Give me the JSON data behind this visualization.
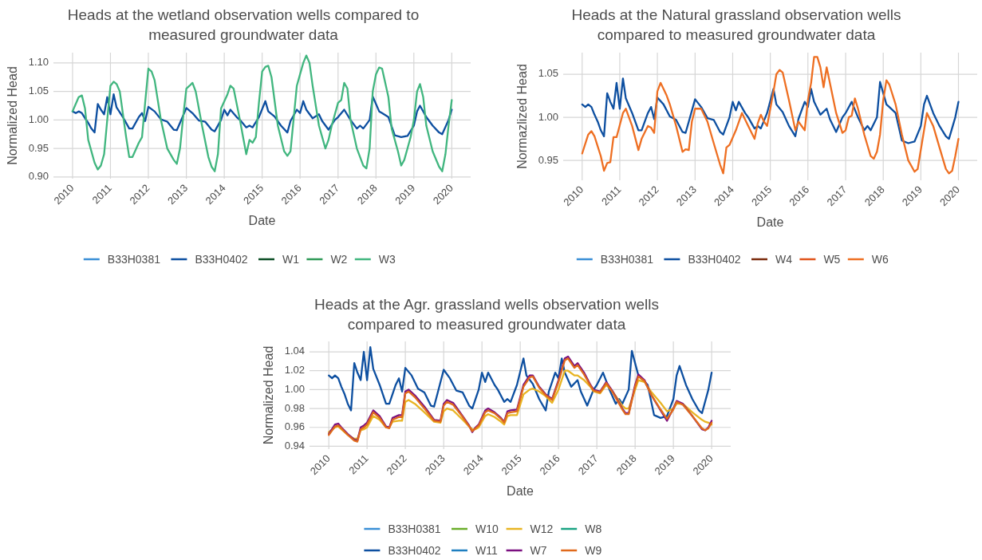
{
  "chart_data": [
    {
      "type": "line",
      "title": "Heads at the wetland observation wells compared to measured groundwater data",
      "xlabel": "Date",
      "ylabel": "Normalized Head",
      "xlim": [
        "2009-07-01",
        "2020-07-01"
      ],
      "xticks": [
        "2010",
        "2011",
        "2012",
        "2013",
        "2014",
        "2015",
        "2016",
        "2017",
        "2018",
        "2019",
        "2020"
      ],
      "ylim": [
        0.897,
        1.118
      ],
      "yticks": [
        {
          "value": 0.9,
          "label": "0.90"
        },
        {
          "value": 0.95,
          "label": "0.95"
        },
        {
          "value": 1.0,
          "label": "1.00"
        },
        {
          "value": 1.05,
          "label": "1.05"
        },
        {
          "value": 1.1,
          "label": "1.10"
        }
      ],
      "grid": true,
      "legend": "bottom",
      "line_style": "solid",
      "marker": "none",
      "series": [
        {
          "name": "B33H0381",
          "color": "#3a8fd6"
        },
        {
          "name": "B33H0402",
          "color": "#0d4fa0",
          "x": [
            "2010-01",
            "2010-02",
            "2010-03",
            "2010-04",
            "2010-05",
            "2010-06",
            "2010-07",
            "2010-08",
            "2010-09",
            "2010-10",
            "2010-11",
            "2010-12",
            "2011-01",
            "2011-02",
            "2011-03",
            "2011-05",
            "2011-07",
            "2011-08",
            "2011-10",
            "2011-11",
            "2011-12",
            "2012-01",
            "2012-03",
            "2012-05",
            "2012-07",
            "2012-09",
            "2012-10",
            "2012-11",
            "2013-01",
            "2013-03",
            "2013-05",
            "2013-07",
            "2013-09",
            "2013-10",
            "2013-12",
            "2014-01",
            "2014-02",
            "2014-03",
            "2014-05",
            "2014-06",
            "2014-08",
            "2014-09",
            "2014-10",
            "2014-12",
            "2015-02",
            "2015-03",
            "2015-05",
            "2015-07",
            "2015-09",
            "2015-10",
            "2015-12",
            "2016-01",
            "2016-02",
            "2016-03",
            "2016-05",
            "2016-07",
            "2016-08",
            "2016-10",
            "2016-12",
            "2017-01",
            "2017-03",
            "2017-05",
            "2017-07",
            "2017-08",
            "2017-09",
            "2017-11",
            "2017-12",
            "2018-02",
            "2018-03",
            "2018-05",
            "2018-07",
            "2018-09",
            "2018-11",
            "2019-01",
            "2019-02",
            "2019-03",
            "2019-05",
            "2019-07",
            "2019-09",
            "2019-10",
            "2019-12",
            "2020-01"
          ],
          "values": [
            1.015,
            1.012,
            1.015,
            1.012,
            1.003,
            0.995,
            0.985,
            0.978,
            1.028,
            1.018,
            1.01,
            1.04,
            1.01,
            1.045,
            1.022,
            1.005,
            0.985,
            0.985,
            1.005,
            1.012,
            0.998,
            1.023,
            1.015,
            1.001,
            0.997,
            0.983,
            0.982,
            0.995,
            1.021,
            1.012,
            0.999,
            0.997,
            0.983,
            0.98,
            1.0,
            1.018,
            1.008,
            1.018,
            1.005,
            1.0,
            0.987,
            0.99,
            0.987,
            1.005,
            1.033,
            1.015,
            1.006,
            0.99,
            0.978,
            0.998,
            1.018,
            1.012,
            1.033,
            1.018,
            1.003,
            1.01,
            0.998,
            0.983,
            1.0,
            1.005,
            1.018,
            1.0,
            0.985,
            0.99,
            0.985,
            1.0,
            1.041,
            1.015,
            1.012,
            1.005,
            0.973,
            0.97,
            0.972,
            0.99,
            1.015,
            1.025,
            1.005,
            0.99,
            0.978,
            0.975,
            1.0,
            1.018
          ]
        },
        {
          "name": "W1",
          "color": "#0b4d24"
        },
        {
          "name": "W2",
          "color": "#2e9957"
        },
        {
          "name": "W3",
          "color": "#41b67f",
          "x": [
            "2010-01",
            "2010-03",
            "2010-04",
            "2010-05",
            "2010-06",
            "2010-08",
            "2010-09",
            "2010-10",
            "2010-11",
            "2010-12",
            "2011-01",
            "2011-02",
            "2011-03",
            "2011-04",
            "2011-06",
            "2011-07",
            "2011-08",
            "2011-10",
            "2011-11",
            "2011-12",
            "2012-01",
            "2012-02",
            "2012-03",
            "2012-05",
            "2012-07",
            "2012-09",
            "2012-10",
            "2012-11",
            "2012-12",
            "2013-01",
            "2013-02",
            "2013-03",
            "2013-04",
            "2013-06",
            "2013-08",
            "2013-09",
            "2013-10",
            "2013-11",
            "2013-12",
            "2014-02",
            "2014-03",
            "2014-04",
            "2014-06",
            "2014-07",
            "2014-08",
            "2014-09",
            "2014-10",
            "2014-11",
            "2014-12",
            "2015-01",
            "2015-02",
            "2015-03",
            "2015-04",
            "2015-06",
            "2015-08",
            "2015-09",
            "2015-10",
            "2015-12",
            "2016-01",
            "2016-02",
            "2016-03",
            "2016-04",
            "2016-05",
            "2016-07",
            "2016-09",
            "2016-10",
            "2016-11",
            "2017-01",
            "2017-02",
            "2017-03",
            "2017-04",
            "2017-05",
            "2017-07",
            "2017-09",
            "2017-10",
            "2017-11",
            "2017-12",
            "2018-01",
            "2018-02",
            "2018-03",
            "2018-05",
            "2018-06",
            "2018-08",
            "2018-09",
            "2018-10",
            "2018-12",
            "2019-01",
            "2019-02",
            "2019-03",
            "2019-04",
            "2019-05",
            "2019-07",
            "2019-09",
            "2019-10",
            "2019-11",
            "2019-12",
            "2020-01"
          ],
          "values": [
            1.015,
            1.04,
            1.043,
            1.02,
            0.965,
            0.925,
            0.913,
            0.92,
            0.94,
            1.0,
            1.06,
            1.067,
            1.063,
            1.05,
            0.97,
            0.935,
            0.935,
            0.96,
            0.97,
            1.03,
            1.09,
            1.085,
            1.07,
            1.0,
            0.95,
            0.93,
            0.923,
            0.95,
            1.005,
            1.055,
            1.06,
            1.065,
            1.05,
            0.99,
            0.935,
            0.918,
            0.91,
            0.94,
            1.02,
            1.045,
            1.06,
            1.055,
            1.0,
            0.97,
            0.94,
            0.965,
            0.96,
            0.97,
            1.03,
            1.085,
            1.093,
            1.095,
            1.075,
            0.99,
            0.945,
            0.937,
            0.945,
            1.06,
            1.08,
            1.1,
            1.113,
            1.1,
            1.06,
            0.99,
            0.95,
            0.965,
            0.99,
            1.03,
            1.035,
            1.065,
            1.055,
            1.0,
            0.95,
            0.92,
            0.915,
            0.95,
            1.05,
            1.08,
            1.092,
            1.09,
            1.04,
            0.985,
            0.945,
            0.92,
            0.93,
            0.97,
            1.0,
            1.05,
            1.063,
            1.04,
            0.99,
            0.945,
            0.918,
            0.91,
            0.94,
            0.99,
            1.035
          ]
        }
      ]
    },
    {
      "type": "line",
      "title": "Heads at the Natural grassland observation wells compared to measured groundwater data",
      "xlabel": "Date",
      "ylabel": "Normazlized Head",
      "xlim": [
        "2009-07-01",
        "2020-07-01"
      ],
      "xticks": [
        "2010",
        "2011",
        "2012",
        "2013",
        "2014",
        "2015",
        "2016",
        "2017",
        "2018",
        "2019",
        "2020"
      ],
      "ylim": [
        0.927,
        1.075
      ],
      "yticks": [
        {
          "value": 0.95,
          "label": "0.95"
        },
        {
          "value": 1.0,
          "label": "1.00"
        },
        {
          "value": 1.05,
          "label": "1.05"
        }
      ],
      "grid": true,
      "legend": "bottom",
      "line_style": "solid",
      "marker": "none",
      "series": [
        {
          "name": "B33H0381",
          "color": "#3a8fd6"
        },
        {
          "name": "B33H0402",
          "color": "#0d4fa0",
          "x": [
            "2010-01",
            "2010-02",
            "2010-03",
            "2010-04",
            "2010-05",
            "2010-06",
            "2010-07",
            "2010-08",
            "2010-09",
            "2010-10",
            "2010-11",
            "2010-12",
            "2011-01",
            "2011-02",
            "2011-03",
            "2011-05",
            "2011-07",
            "2011-08",
            "2011-10",
            "2011-11",
            "2011-12",
            "2012-01",
            "2012-03",
            "2012-05",
            "2012-07",
            "2012-09",
            "2012-10",
            "2012-11",
            "2013-01",
            "2013-03",
            "2013-05",
            "2013-07",
            "2013-09",
            "2013-10",
            "2013-12",
            "2014-01",
            "2014-02",
            "2014-03",
            "2014-05",
            "2014-06",
            "2014-08",
            "2014-09",
            "2014-10",
            "2014-12",
            "2015-02",
            "2015-03",
            "2015-05",
            "2015-07",
            "2015-09",
            "2015-10",
            "2015-12",
            "2016-01",
            "2016-02",
            "2016-03",
            "2016-05",
            "2016-07",
            "2016-08",
            "2016-10",
            "2016-12",
            "2017-01",
            "2017-03",
            "2017-05",
            "2017-07",
            "2017-08",
            "2017-09",
            "2017-11",
            "2017-12",
            "2018-02",
            "2018-03",
            "2018-05",
            "2018-07",
            "2018-09",
            "2018-11",
            "2019-01",
            "2019-02",
            "2019-03",
            "2019-05",
            "2019-07",
            "2019-09",
            "2019-10",
            "2019-12",
            "2020-01"
          ],
          "values": [
            1.015,
            1.012,
            1.015,
            1.012,
            1.003,
            0.995,
            0.985,
            0.978,
            1.028,
            1.018,
            1.01,
            1.04,
            1.01,
            1.045,
            1.022,
            1.005,
            0.985,
            0.985,
            1.005,
            1.012,
            0.998,
            1.023,
            1.015,
            1.001,
            0.997,
            0.983,
            0.982,
            0.995,
            1.021,
            1.012,
            0.999,
            0.997,
            0.983,
            0.98,
            1.0,
            1.018,
            1.008,
            1.018,
            1.005,
            1.0,
            0.987,
            0.99,
            0.987,
            1.005,
            1.033,
            1.015,
            1.006,
            0.99,
            0.978,
            0.998,
            1.018,
            1.012,
            1.033,
            1.018,
            1.003,
            1.01,
            0.998,
            0.983,
            1.0,
            1.005,
            1.018,
            1.0,
            0.985,
            0.99,
            0.985,
            1.0,
            1.041,
            1.015,
            1.012,
            1.005,
            0.973,
            0.97,
            0.972,
            0.99,
            1.015,
            1.025,
            1.005,
            0.99,
            0.978,
            0.975,
            1.0,
            1.018
          ]
        },
        {
          "name": "W4",
          "color": "#7a2a0c"
        },
        {
          "name": "W5",
          "color": "#e0531a"
        },
        {
          "name": "W6",
          "color": "#ee6f22",
          "x": [
            "2010-01",
            "2010-03",
            "2010-04",
            "2010-05",
            "2010-07",
            "2010-08",
            "2010-09",
            "2010-10",
            "2010-11",
            "2010-12",
            "2011-02",
            "2011-03",
            "2011-05",
            "2011-07",
            "2011-08",
            "2011-10",
            "2011-11",
            "2011-12",
            "2012-01",
            "2012-02",
            "2012-03",
            "2012-04",
            "2012-05",
            "2012-07",
            "2012-09",
            "2012-10",
            "2012-11",
            "2012-12",
            "2013-01",
            "2013-03",
            "2013-05",
            "2013-07",
            "2013-09",
            "2013-10",
            "2013-11",
            "2013-12",
            "2014-02",
            "2014-04",
            "2014-06",
            "2014-08",
            "2014-09",
            "2014-10",
            "2014-11",
            "2014-12",
            "2015-02",
            "2015-03",
            "2015-04",
            "2015-05",
            "2015-07",
            "2015-09",
            "2015-10",
            "2015-12",
            "2016-01",
            "2016-02",
            "2016-03",
            "2016-04",
            "2016-05",
            "2016-06",
            "2016-07",
            "2016-08",
            "2016-10",
            "2016-12",
            "2017-01",
            "2017-02",
            "2017-03",
            "2017-04",
            "2017-05",
            "2017-07",
            "2017-09",
            "2017-10",
            "2017-11",
            "2017-12",
            "2018-01",
            "2018-02",
            "2018-03",
            "2018-05",
            "2018-07",
            "2018-09",
            "2018-11",
            "2018-12",
            "2019-02",
            "2019-03",
            "2019-05",
            "2019-07",
            "2019-09",
            "2019-10",
            "2019-11",
            "2019-12",
            "2020-01"
          ],
          "values": [
            0.958,
            0.98,
            0.984,
            0.978,
            0.955,
            0.938,
            0.947,
            0.948,
            0.977,
            0.977,
            1.005,
            1.01,
            0.99,
            0.962,
            0.975,
            0.99,
            0.988,
            0.982,
            1.03,
            1.04,
            1.033,
            1.025,
            1.015,
            0.99,
            0.96,
            0.963,
            0.962,
            0.995,
            1.01,
            1.01,
            0.995,
            0.97,
            0.945,
            0.935,
            0.965,
            0.968,
            0.985,
            1.005,
            0.99,
            0.975,
            0.993,
            1.003,
            0.995,
            0.99,
            1.03,
            1.05,
            1.055,
            1.052,
            1.02,
            0.985,
            0.995,
            0.985,
            1.02,
            1.04,
            1.07,
            1.07,
            1.058,
            1.035,
            1.058,
            1.04,
            1.005,
            0.982,
            0.985,
            1.0,
            1.002,
            1.022,
            1.01,
            0.98,
            0.955,
            0.952,
            0.96,
            0.98,
            1.02,
            1.043,
            1.038,
            1.015,
            0.98,
            0.95,
            0.937,
            0.94,
            0.985,
            1.005,
            0.99,
            0.965,
            0.94,
            0.935,
            0.938,
            0.955,
            0.975
          ]
        }
      ]
    },
    {
      "type": "line",
      "title": "Heads at the Agr. grassland wells observation wells compared to measured groundwater data",
      "xlabel": "Date",
      "ylabel": "Normalized Head",
      "xlim": [
        "2009-07-01",
        "2020-07-01"
      ],
      "xticks": [
        "2010",
        "2011",
        "2012",
        "2013",
        "2014",
        "2015",
        "2016",
        "2017",
        "2018",
        "2019",
        "2020"
      ],
      "ylim": [
        0.937,
        1.051
      ],
      "yticks": [
        {
          "value": 0.94,
          "label": "0.94"
        },
        {
          "value": 0.96,
          "label": "0.96"
        },
        {
          "value": 0.98,
          "label": "0.98"
        },
        {
          "value": 1.0,
          "label": "1.00"
        },
        {
          "value": 1.02,
          "label": "1.02"
        },
        {
          "value": 1.04,
          "label": "1.04"
        }
      ],
      "grid": true,
      "legend": "bottom",
      "line_style": "solid",
      "marker": "none",
      "series": [
        {
          "name": "B33H0381",
          "color": "#3a8fd6"
        },
        {
          "name": "B33H0402",
          "color": "#0d4fa0",
          "x": [
            "2010-01",
            "2010-02",
            "2010-03",
            "2010-04",
            "2010-05",
            "2010-06",
            "2010-07",
            "2010-08",
            "2010-09",
            "2010-10",
            "2010-11",
            "2010-12",
            "2011-01",
            "2011-02",
            "2011-03",
            "2011-05",
            "2011-07",
            "2011-08",
            "2011-10",
            "2011-11",
            "2011-12",
            "2012-01",
            "2012-03",
            "2012-05",
            "2012-07",
            "2012-09",
            "2012-10",
            "2012-11",
            "2013-01",
            "2013-03",
            "2013-05",
            "2013-07",
            "2013-09",
            "2013-10",
            "2013-12",
            "2014-01",
            "2014-02",
            "2014-03",
            "2014-05",
            "2014-06",
            "2014-08",
            "2014-09",
            "2014-10",
            "2014-12",
            "2015-02",
            "2015-03",
            "2015-05",
            "2015-07",
            "2015-09",
            "2015-10",
            "2015-12",
            "2016-01",
            "2016-02",
            "2016-03",
            "2016-05",
            "2016-07",
            "2016-08",
            "2016-10",
            "2016-12",
            "2017-01",
            "2017-03",
            "2017-05",
            "2017-07",
            "2017-08",
            "2017-09",
            "2017-11",
            "2017-12",
            "2018-02",
            "2018-03",
            "2018-05",
            "2018-07",
            "2018-09",
            "2018-11",
            "2019-01",
            "2019-02",
            "2019-03",
            "2019-05",
            "2019-07",
            "2019-09",
            "2019-10",
            "2019-12",
            "2020-01"
          ],
          "values": [
            1.015,
            1.012,
            1.015,
            1.012,
            1.003,
            0.995,
            0.985,
            0.978,
            1.028,
            1.018,
            1.01,
            1.04,
            1.01,
            1.045,
            1.022,
            1.005,
            0.985,
            0.985,
            1.005,
            1.012,
            0.998,
            1.023,
            1.015,
            1.001,
            0.997,
            0.983,
            0.982,
            0.995,
            1.021,
            1.012,
            0.999,
            0.997,
            0.983,
            0.98,
            1.0,
            1.018,
            1.008,
            1.018,
            1.005,
            1.0,
            0.987,
            0.99,
            0.987,
            1.005,
            1.033,
            1.015,
            1.006,
            0.99,
            0.978,
            0.998,
            1.018,
            1.012,
            1.033,
            1.018,
            1.003,
            1.01,
            0.998,
            0.983,
            1.0,
            1.005,
            1.018,
            1.0,
            0.985,
            0.99,
            0.985,
            1.0,
            1.041,
            1.015,
            1.012,
            1.005,
            0.973,
            0.97,
            0.972,
            0.99,
            1.015,
            1.025,
            1.005,
            0.99,
            0.978,
            0.975,
            1.0,
            1.018
          ]
        },
        {
          "name": "W10",
          "color": "#6aad2a"
        },
        {
          "name": "W11",
          "color": "#1f7fc0"
        },
        {
          "name": "W12",
          "color": "#e8b422",
          "x": [
            "2010-01",
            "2010-03",
            "2010-04",
            "2010-05",
            "2010-07",
            "2010-09",
            "2010-10",
            "2010-11",
            "2010-12",
            "2011-01",
            "2011-03",
            "2011-05",
            "2011-07",
            "2011-08",
            "2011-09",
            "2011-11",
            "2011-12",
            "2012-01",
            "2012-02",
            "2012-04",
            "2012-07",
            "2012-10",
            "2012-12",
            "2013-01",
            "2013-02",
            "2013-04",
            "2013-07",
            "2013-09",
            "2013-10",
            "2013-11",
            "2013-12",
            "2014-02",
            "2014-03",
            "2014-05",
            "2014-07",
            "2014-08",
            "2014-09",
            "2014-10",
            "2014-12",
            "2015-02",
            "2015-04",
            "2015-05",
            "2015-07",
            "2015-09",
            "2015-11",
            "2016-01",
            "2016-03",
            "2016-04",
            "2016-06",
            "2016-07",
            "2016-09",
            "2016-11",
            "2016-12",
            "2017-02",
            "2017-04",
            "2017-06",
            "2017-09",
            "2017-10",
            "2017-11",
            "2018-01",
            "2018-02",
            "2018-04",
            "2018-06",
            "2018-09",
            "2018-11",
            "2019-01",
            "2019-02",
            "2019-04",
            "2019-07",
            "2019-10",
            "2019-11",
            "2019-12",
            "2020-01"
          ],
          "values": [
            0.955,
            0.96,
            0.961,
            0.958,
            0.952,
            0.948,
            0.948,
            0.957,
            0.958,
            0.96,
            0.972,
            0.968,
            0.96,
            0.96,
            0.966,
            0.967,
            0.967,
            0.987,
            0.989,
            0.985,
            0.976,
            0.966,
            0.965,
            0.977,
            0.98,
            0.978,
            0.968,
            0.961,
            0.958,
            0.958,
            0.96,
            0.972,
            0.974,
            0.971,
            0.966,
            0.963,
            0.972,
            0.973,
            0.973,
            0.995,
            1.0,
            1.001,
            0.998,
            0.993,
            0.986,
            1.0,
            1.02,
            1.02,
            1.015,
            1.015,
            1.01,
            1.003,
            0.998,
            0.996,
            1.005,
            0.998,
            0.983,
            0.98,
            0.98,
            1.0,
            1.01,
            1.008,
            0.998,
            0.986,
            0.977,
            0.98,
            0.985,
            0.985,
            0.976,
            0.968,
            0.966,
            0.965,
            0.963
          ]
        },
        {
          "name": "W7",
          "color": "#7b1080",
          "x": [
            "2010-01",
            "2010-03",
            "2010-04",
            "2010-05",
            "2010-07",
            "2010-09",
            "2010-10",
            "2010-11",
            "2010-12",
            "2011-01",
            "2011-03",
            "2011-05",
            "2011-07",
            "2011-08",
            "2011-09",
            "2011-11",
            "2011-12",
            "2012-01",
            "2012-02",
            "2012-04",
            "2012-07",
            "2012-10",
            "2012-12",
            "2013-01",
            "2013-02",
            "2013-04",
            "2013-07",
            "2013-09",
            "2013-10",
            "2013-11",
            "2013-12",
            "2014-02",
            "2014-03",
            "2014-05",
            "2014-07",
            "2014-08",
            "2014-09",
            "2014-10",
            "2014-12",
            "2015-02",
            "2015-04",
            "2015-05",
            "2015-07",
            "2015-09",
            "2015-11",
            "2016-01",
            "2016-03",
            "2016-04",
            "2016-06",
            "2016-07",
            "2016-09",
            "2016-11",
            "2016-12",
            "2017-02",
            "2017-04",
            "2017-06",
            "2017-09",
            "2017-10",
            "2017-11",
            "2018-01",
            "2018-02",
            "2018-04",
            "2018-06",
            "2018-09",
            "2018-11",
            "2019-01",
            "2019-02",
            "2019-04",
            "2019-07",
            "2019-10",
            "2019-11",
            "2019-12",
            "2020-01"
          ],
          "values": [
            0.953,
            0.963,
            0.964,
            0.96,
            0.953,
            0.947,
            0.946,
            0.96,
            0.962,
            0.965,
            0.978,
            0.972,
            0.961,
            0.96,
            0.97,
            0.973,
            0.973,
            0.998,
            1.0,
            0.994,
            0.982,
            0.968,
            0.967,
            0.985,
            0.989,
            0.986,
            0.972,
            0.962,
            0.955,
            0.96,
            0.963,
            0.978,
            0.98,
            0.976,
            0.97,
            0.966,
            0.977,
            0.978,
            0.979,
            1.005,
            1.015,
            1.015,
            1.003,
            0.995,
            0.99,
            1.01,
            1.033,
            1.035,
            1.025,
            1.028,
            1.018,
            1.005,
            1.0,
            0.998,
            1.008,
            0.998,
            0.98,
            0.975,
            0.975,
            1.005,
            1.016,
            1.01,
            0.995,
            0.978,
            0.967,
            0.98,
            0.988,
            0.985,
            0.972,
            0.958,
            0.957,
            0.96,
            0.967
          ]
        },
        {
          "name": "W8",
          "color": "#1aa383"
        },
        {
          "name": "W9",
          "color": "#e06a1c",
          "x": [
            "2010-01",
            "2010-03",
            "2010-04",
            "2010-05",
            "2010-07",
            "2010-09",
            "2010-10",
            "2010-11",
            "2010-12",
            "2011-01",
            "2011-03",
            "2011-05",
            "2011-07",
            "2011-08",
            "2011-09",
            "2011-11",
            "2011-12",
            "2012-01",
            "2012-02",
            "2012-04",
            "2012-07",
            "2012-10",
            "2012-12",
            "2013-01",
            "2013-02",
            "2013-04",
            "2013-07",
            "2013-09",
            "2013-10",
            "2013-11",
            "2013-12",
            "2014-02",
            "2014-03",
            "2014-05",
            "2014-07",
            "2014-08",
            "2014-09",
            "2014-10",
            "2014-12",
            "2015-02",
            "2015-04",
            "2015-05",
            "2015-07",
            "2015-09",
            "2015-11",
            "2016-01",
            "2016-03",
            "2016-04",
            "2016-06",
            "2016-07",
            "2016-09",
            "2016-11",
            "2016-12",
            "2017-02",
            "2017-04",
            "2017-06",
            "2017-09",
            "2017-10",
            "2017-11",
            "2018-01",
            "2018-02",
            "2018-04",
            "2018-06",
            "2018-09",
            "2018-11",
            "2019-01",
            "2019-02",
            "2019-04",
            "2019-07",
            "2019-10",
            "2019-11",
            "2019-12",
            "2020-01"
          ],
          "values": [
            0.952,
            0.961,
            0.962,
            0.959,
            0.952,
            0.946,
            0.945,
            0.958,
            0.96,
            0.963,
            0.976,
            0.97,
            0.96,
            0.959,
            0.968,
            0.971,
            0.971,
            0.996,
            0.998,
            0.992,
            0.98,
            0.967,
            0.966,
            0.983,
            0.987,
            0.984,
            0.971,
            0.961,
            0.956,
            0.959,
            0.962,
            0.976,
            0.978,
            0.975,
            0.969,
            0.965,
            0.975,
            0.976,
            0.977,
            1.003,
            1.013,
            1.014,
            1.002,
            0.994,
            0.989,
            1.008,
            1.031,
            1.033,
            1.023,
            1.026,
            1.016,
            1.004,
            0.999,
            0.997,
            1.007,
            0.997,
            0.979,
            0.974,
            0.974,
            1.003,
            1.014,
            1.009,
            0.995,
            0.979,
            0.969,
            0.979,
            0.987,
            0.984,
            0.972,
            0.959,
            0.957,
            0.959,
            0.965
          ]
        }
      ]
    }
  ]
}
